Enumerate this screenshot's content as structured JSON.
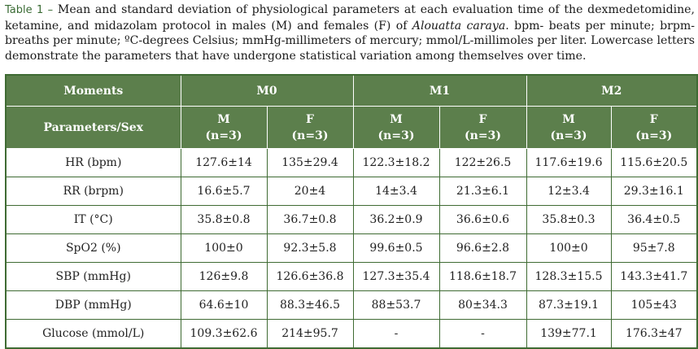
{
  "caption": {
    "label": "Table 1 –",
    "text_before_species": " Mean and standard deviation of physiological parameters at each evaluation time of the dexmedetomidine, ketamine, and midazolam protocol in males (M) and females (F) of ",
    "species": "Alouatta caraya",
    "text_after_species": ". bpm- beats per minute; brpm- breaths per minute; ºC-degrees Celsius; mmHg-millimeters of mercury; mmol/L-millimoles per liter. Lowercase letters demonstrate the parameters that have undergone statistical variation among themselves over time."
  },
  "table": {
    "header_moments": "Moments",
    "header_params": "Parameters/Sex",
    "moments": [
      "M0",
      "M1",
      "M2"
    ],
    "sex_labels": [
      {
        "sex": "M",
        "n": "(n=3)"
      },
      {
        "sex": "F",
        "n": "(n=3)"
      },
      {
        "sex": "M",
        "n": "(n=3)"
      },
      {
        "sex": "F",
        "n": "(n=3)"
      },
      {
        "sex": "M",
        "n": "(n=3)"
      },
      {
        "sex": "F",
        "n": "(n=3)"
      }
    ],
    "rows": [
      {
        "param": "HR (bpm)",
        "values": [
          "127.6±14",
          "135±29.4",
          "122.3±18.2",
          "122±26.5",
          "117.6±19.6",
          "115.6±20.5"
        ]
      },
      {
        "param": "RR (brpm)",
        "values": [
          "16.6±5.7",
          "20±4",
          "14±3.4",
          "21.3±6.1",
          "12±3.4",
          "29.3±16.1"
        ]
      },
      {
        "param": "IT (°C)",
        "values": [
          "35.8±0.8",
          "36.7±0.8",
          "36.2±0.9",
          "36.6±0.6",
          "35.8±0.3",
          "36.4±0.5"
        ]
      },
      {
        "param": "SpO2 (%)",
        "values": [
          "100±0",
          "92.3±5.8",
          "99.6±0.5",
          "96.6±2.8",
          "100±0",
          "95±7.8"
        ]
      },
      {
        "param": "SBP (mmHg)",
        "values": [
          "126±9.8",
          "126.6±36.8",
          "127.3±35.4",
          "118.6±18.7",
          "128.3±15.5",
          "143.3±41.7"
        ]
      },
      {
        "param": "DBP (mmHg)",
        "values": [
          "64.6±10",
          "88.3±46.5",
          "88±53.7",
          "80±34.3",
          "87.3±19.1",
          "105±43"
        ]
      },
      {
        "param": "Glucose (mmol/L)",
        "values": [
          "109.3±62.6",
          "214±95.7",
          "-",
          "-",
          "139±77.1",
          "176.3±47"
        ]
      }
    ]
  },
  "colors": {
    "header_bg": "#5c7f4c",
    "border": "#3f6b33",
    "label_green": "#3a6b34"
  }
}
